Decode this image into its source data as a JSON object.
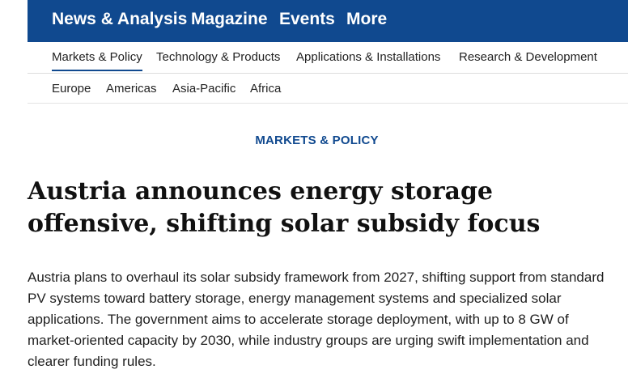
{
  "main_nav": {
    "items": [
      {
        "label": "News & Analysis"
      },
      {
        "label": "Magazine"
      },
      {
        "label": "Events"
      },
      {
        "label": "More"
      }
    ]
  },
  "sub_nav": {
    "items": [
      {
        "label": "Markets & Policy",
        "active": true
      },
      {
        "label": "Technology & Products"
      },
      {
        "label": "Applications & Installations"
      },
      {
        "label": "Research & Development"
      }
    ]
  },
  "region_nav": {
    "items": [
      {
        "label": "Europe"
      },
      {
        "label": "Americas"
      },
      {
        "label": "Asia-Pacific"
      },
      {
        "label": "Africa"
      }
    ]
  },
  "article": {
    "category": "MARKETS & POLICY",
    "title": "Austria announces energy storage offensive, shifting solar subsidy focus",
    "summary": "Austria plans to overhaul its solar subsidy framework from 2027, shifting support from standard PV systems toward battery storage, energy management systems and specialized solar applications. The government aims to accelerate storage deployment, with up to 8 GW of market-oriented capacity by 2030, while industry groups are urging swift implementation and clearer funding rules."
  },
  "colors": {
    "brand_blue": "#10498f",
    "text": "#1f1f1f"
  }
}
